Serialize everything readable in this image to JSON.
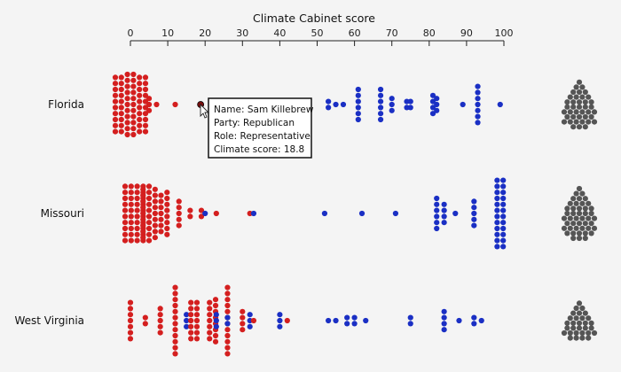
{
  "chart_data": {
    "type": "scatter",
    "subtype": "beeswarm",
    "xlabel": "Climate Cabinet score",
    "xlim": [
      0,
      100
    ],
    "xticks": [
      "0",
      "10",
      "20",
      "30",
      "40",
      "50",
      "60",
      "70",
      "80",
      "90",
      "100"
    ],
    "categories": [
      "Florida",
      "Missouri",
      "West Virginia"
    ],
    "colors": {
      "Republican": "#d41f1f",
      "Democrat": "#1a2fc4",
      "unscored": "#555555",
      "highlight": "#7a0e0e"
    },
    "series": [
      {
        "name": "Florida",
        "points": [
          {
            "party": "R",
            "score": 0,
            "count": 62
          },
          {
            "party": "R",
            "score": 5,
            "count": 3
          },
          {
            "party": "R",
            "score": 7,
            "count": 1
          },
          {
            "party": "R",
            "score": 12,
            "count": 1
          },
          {
            "party": "R",
            "score": 18.8,
            "count": 1,
            "highlight": true
          },
          {
            "party": "D",
            "score": 53,
            "count": 2
          },
          {
            "party": "D",
            "score": 55,
            "count": 1
          },
          {
            "party": "D",
            "score": 57,
            "count": 1
          },
          {
            "party": "D",
            "score": 61,
            "count": 6
          },
          {
            "party": "D",
            "score": 67,
            "count": 6
          },
          {
            "party": "D",
            "score": 70,
            "count": 3
          },
          {
            "party": "D",
            "score": 74,
            "count": 2
          },
          {
            "party": "D",
            "score": 75,
            "count": 2
          },
          {
            "party": "D",
            "score": 81,
            "count": 4
          },
          {
            "party": "D",
            "score": 82,
            "count": 3
          },
          {
            "party": "D",
            "score": 89,
            "count": 1
          },
          {
            "party": "D",
            "score": 93,
            "count": 7
          },
          {
            "party": "D",
            "score": 99,
            "count": 1
          }
        ],
        "unscored": 40
      },
      {
        "name": "Missouri",
        "points": [
          {
            "party": "R",
            "score": 1,
            "count": 40
          },
          {
            "party": "R",
            "score": 5,
            "count": 28
          },
          {
            "party": "R",
            "score": 9,
            "count": 15
          },
          {
            "party": "R",
            "score": 13,
            "count": 5
          },
          {
            "party": "R",
            "score": 16,
            "count": 2
          },
          {
            "party": "R",
            "score": 19,
            "count": 2
          },
          {
            "party": "D",
            "score": 20,
            "count": 1
          },
          {
            "party": "R",
            "score": 23,
            "count": 1
          },
          {
            "party": "R",
            "score": 32,
            "count": 1
          },
          {
            "party": "D",
            "score": 33,
            "count": 1
          },
          {
            "party": "D",
            "score": 52,
            "count": 1
          },
          {
            "party": "D",
            "score": 62,
            "count": 1
          },
          {
            "party": "D",
            "score": 71,
            "count": 1
          },
          {
            "party": "D",
            "score": 82,
            "count": 6
          },
          {
            "party": "D",
            "score": 84,
            "count": 4
          },
          {
            "party": "D",
            "score": 87,
            "count": 1
          },
          {
            "party": "D",
            "score": 92,
            "count": 5
          },
          {
            "party": "D",
            "score": 99,
            "count": 24
          }
        ],
        "unscored": 45
      },
      {
        "name": "West Virginia",
        "points": [
          {
            "party": "R",
            "score": 0,
            "count": 7
          },
          {
            "party": "R",
            "score": 4,
            "count": 2
          },
          {
            "party": "R",
            "score": 8,
            "count": 5
          },
          {
            "party": "R",
            "score": 12,
            "count": 12
          },
          {
            "party": "D",
            "score": 15,
            "count": 3
          },
          {
            "party": "R",
            "score": 17,
            "count": 14
          },
          {
            "party": "R",
            "score": 22,
            "count": 15
          },
          {
            "party": "D",
            "score": 23,
            "count": 3
          },
          {
            "party": "R",
            "score": 26,
            "count": 12
          },
          {
            "party": "D",
            "score": 26,
            "count": 2
          },
          {
            "party": "R",
            "score": 30,
            "count": 4
          },
          {
            "party": "D",
            "score": 32,
            "count": 3
          },
          {
            "party": "R",
            "score": 33,
            "count": 1
          },
          {
            "party": "D",
            "score": 40,
            "count": 3
          },
          {
            "party": "R",
            "score": 42,
            "count": 1
          },
          {
            "party": "D",
            "score": 53,
            "count": 1
          },
          {
            "party": "D",
            "score": 55,
            "count": 1
          },
          {
            "party": "D",
            "score": 58,
            "count": 2
          },
          {
            "party": "D",
            "score": 60,
            "count": 2
          },
          {
            "party": "D",
            "score": 63,
            "count": 1
          },
          {
            "party": "D",
            "score": 75,
            "count": 2
          },
          {
            "party": "D",
            "score": 84,
            "count": 4
          },
          {
            "party": "D",
            "score": 88,
            "count": 1
          },
          {
            "party": "D",
            "score": 92,
            "count": 2
          },
          {
            "party": "D",
            "score": 94,
            "count": 1
          }
        ],
        "unscored": 30
      }
    ]
  },
  "tooltip": {
    "lines": [
      "Name: Sam Killebrew",
      "Party: Republican",
      "Role: Representative",
      "Climate score: 18.8"
    ]
  }
}
